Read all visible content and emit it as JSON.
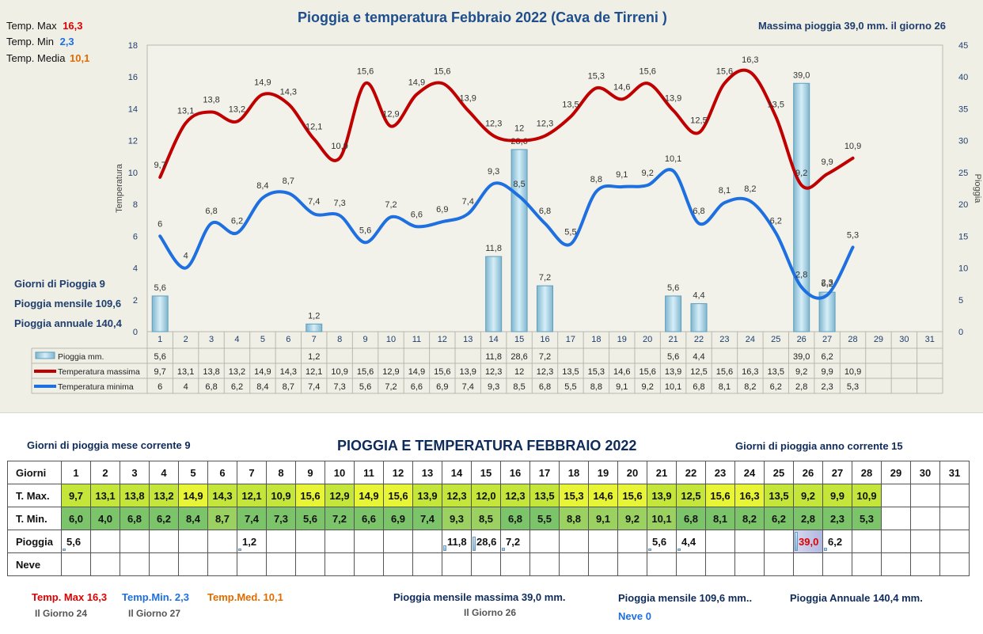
{
  "chart_data": {
    "type": "line",
    "title": "Pioggia e temperatura Febbraio 2022 (Cava de Tirreni )",
    "ylabel": "Temperatura",
    "y2label": "Pioggia",
    "ylim": [
      0,
      18
    ],
    "y2lim": [
      0,
      45
    ],
    "y_ticks": [
      "0",
      "2",
      "4",
      "6",
      "8",
      "10",
      "12",
      "14",
      "16",
      "18"
    ],
    "y2_ticks": [
      "0",
      "5",
      "10",
      "15",
      "20",
      "25",
      "30",
      "35",
      "40",
      "45"
    ],
    "days": [
      "1",
      "2",
      "3",
      "4",
      "5",
      "6",
      "7",
      "8",
      "9",
      "10",
      "11",
      "12",
      "13",
      "14",
      "15",
      "16",
      "17",
      "18",
      "19",
      "20",
      "21",
      "22",
      "23",
      "24",
      "25",
      "26",
      "27",
      "28",
      "29",
      "30",
      "31"
    ],
    "series": [
      {
        "name": "Pioggia mm.",
        "kind": "bar",
        "axis": "right",
        "color": "#a8d4e6",
        "values": [
          5.6,
          null,
          null,
          null,
          null,
          null,
          1.2,
          null,
          null,
          null,
          null,
          null,
          null,
          11.8,
          28.6,
          7.2,
          null,
          null,
          null,
          null,
          5.6,
          4.4,
          null,
          null,
          null,
          39.0,
          6.2,
          null,
          null,
          null,
          null
        ],
        "labels": [
          "5,6",
          "",
          "",
          "",
          "",
          "",
          "1,2",
          "",
          "",
          "",
          "",
          "",
          "",
          "11,8",
          "28,6",
          "7,2",
          "",
          "",
          "",
          "",
          "5,6",
          "4,4",
          "",
          "",
          "",
          "39,0",
          "6,2",
          "",
          "",
          "",
          ""
        ]
      },
      {
        "name": "Temperatura massima",
        "kind": "line",
        "axis": "left",
        "color": "#c00000",
        "values": [
          9.7,
          13.1,
          13.8,
          13.2,
          14.9,
          14.3,
          12.1,
          10.9,
          15.6,
          12.9,
          14.9,
          15.6,
          13.9,
          12.3,
          12,
          12.3,
          13.5,
          15.3,
          14.6,
          15.6,
          13.9,
          12.5,
          15.6,
          16.3,
          13.5,
          9.2,
          9.9,
          10.9,
          null,
          null,
          null
        ],
        "labels": [
          "9,7",
          "13,1",
          "13,8",
          "13,2",
          "14,9",
          "14,3",
          "12,1",
          "10,9",
          "15,6",
          "12,9",
          "14,9",
          "15,6",
          "13,9",
          "12,3",
          "12",
          "12,3",
          "13,5",
          "15,3",
          "14,6",
          "15,6",
          "13,9",
          "12,5",
          "15,6",
          "16,3",
          "13,5",
          "9,2",
          "9,9",
          "10,9",
          "",
          "",
          ""
        ]
      },
      {
        "name": "Temperatura minima",
        "kind": "line",
        "axis": "left",
        "color": "#1e6fe0",
        "values": [
          6,
          4,
          6.8,
          6.2,
          8.4,
          8.7,
          7.4,
          7.3,
          5.6,
          7.2,
          6.6,
          6.9,
          7.4,
          9.3,
          8.5,
          6.8,
          5.5,
          8.8,
          9.1,
          9.2,
          10.1,
          6.8,
          8.1,
          8.2,
          6.2,
          2.8,
          2.3,
          5.3,
          null,
          null,
          null
        ],
        "labels": [
          "6",
          "4",
          "6,8",
          "6,2",
          "8,4",
          "8,7",
          "7,4",
          "7,3",
          "5,6",
          "7,2",
          "6,6",
          "6,9",
          "7,4",
          "9,3",
          "8,5",
          "6,8",
          "5,5",
          "8,8",
          "9,1",
          "9,2",
          "10,1",
          "6,8",
          "8,1",
          "8,2",
          "6,2",
          "2,8",
          "2,3",
          "5,3",
          "",
          "",
          ""
        ]
      }
    ],
    "legend_placement": "bottom-table"
  },
  "header": {
    "tmax_label": "Temp. Max",
    "tmax_value": "16,3",
    "tmin_label": "Temp. Min",
    "tmin_value": "2,3",
    "tmed_label": "Temp. Media",
    "tmed_value": "10,1",
    "max_rain": "Massima pioggia  39,0 mm. il giorno   26"
  },
  "side": {
    "rain_days": "Giorni di Pioggia  9",
    "monthly": "Pioggia mensile  109,6",
    "annual": "Pioggia annuale  140,4"
  },
  "bottom": {
    "rain_days_month": "Giorni di pioggia  mese corrente     9",
    "title": "PIOGGIA E TEMPERATURA FEBBRAIO 2022",
    "rain_days_year": "Giorni di pioggia anno corrente   15",
    "row_days": "Giorni",
    "row_tmax": "T. Max.",
    "row_tmin": "T. Min.",
    "row_rain": "Pioggia",
    "row_snow": "Neve",
    "tmax": [
      "9,7",
      "13,1",
      "13,8",
      "13,2",
      "14,9",
      "14,3",
      "12,1",
      "10,9",
      "15,6",
      "12,9",
      "14,9",
      "15,6",
      "13,9",
      "12,3",
      "12,0",
      "12,3",
      "13,5",
      "15,3",
      "14,6",
      "15,6",
      "13,9",
      "12,5",
      "15,6",
      "16,3",
      "13,5",
      "9,2",
      "9,9",
      "10,9",
      "",
      "",
      ""
    ],
    "tmin": [
      "6,0",
      "4,0",
      "6,8",
      "6,2",
      "8,4",
      "8,7",
      "7,4",
      "7,3",
      "5,6",
      "7,2",
      "6,6",
      "6,9",
      "7,4",
      "9,3",
      "8,5",
      "6,8",
      "5,5",
      "8,8",
      "9,1",
      "9,2",
      "10,1",
      "6,8",
      "8,1",
      "8,2",
      "6,2",
      "2,8",
      "2,3",
      "5,3",
      "",
      "",
      ""
    ],
    "rain": [
      "5,6",
      "",
      "",
      "",
      "",
      "",
      "1,2",
      "",
      "",
      "",
      "",
      "",
      "",
      "11,8",
      "28,6",
      "7,2",
      "",
      "",
      "",
      "",
      "5,6",
      "4,4",
      "",
      "",
      "",
      "39,0",
      "6,2",
      "",
      "",
      "",
      ""
    ],
    "footer": {
      "tmax": "Temp. Max 16,3",
      "tmax_day": "Il Giorno  24",
      "tmin": "Temp.Min.  2,3",
      "tmin_day": "Il Giorno 27",
      "tmed": "Temp.Med. 10,1",
      "max_rain": "Pioggia mensile massima 39,0   mm.",
      "max_rain_day": "Il Giorno 26",
      "monthly": "Pioggia mensile  109,6 mm..",
      "annual": "Pioggia Annuale  140,4    mm.",
      "snow": "Neve 0"
    }
  }
}
